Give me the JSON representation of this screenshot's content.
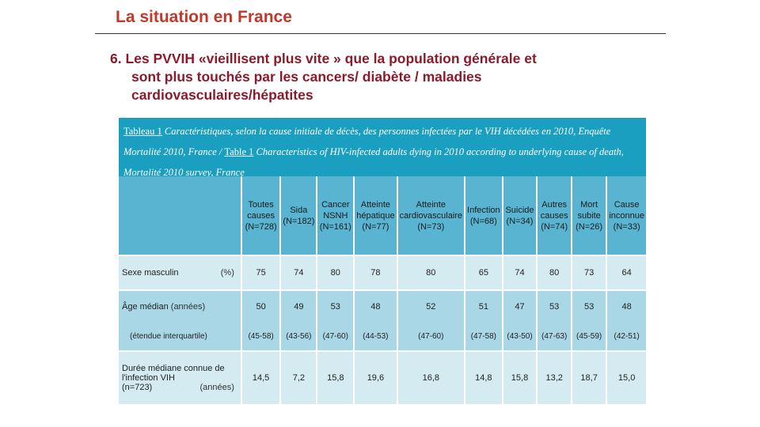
{
  "slide": {
    "title": "La situation en France",
    "bullet": {
      "line1": "6. Les PVVIH «vieillisent plus vite » que la population générale et",
      "line2": "sont plus touchés par les cancers/ diabète / maladies",
      "line3": "cardiovasculaires/hépatites"
    }
  },
  "table": {
    "caption": {
      "tag1": "Tableau 1",
      "text1": "Caractéristiques, selon la cause initiale de décès, des personnes infectées par le VIH décédées en 2010, Enquête Mortalité 2010, France /",
      "tag2": "Table 1",
      "text2": "Characteristics of HIV-infected adults dying in 2010 according to underlying cause of death, Mortalité 2010 survey, France"
    },
    "columns": [
      {
        "name": "Toutes causes",
        "n": "(N=728)"
      },
      {
        "name": "Sida",
        "n": "(N=182)"
      },
      {
        "name": "Cancer NSNH",
        "n": "(N=161)"
      },
      {
        "name": "Atteinte hépatique",
        "n": "(N=77)"
      },
      {
        "name": "Atteinte cardiovasculaire",
        "n": "(N=73)"
      },
      {
        "name": "Infection",
        "n": "(N=68)"
      },
      {
        "name": "Suicide",
        "n": "(N=34)"
      },
      {
        "name": "Autres causes",
        "n": "(N=74)"
      },
      {
        "name": "Mort subite",
        "n": "(N=26)"
      },
      {
        "name": "Cause inconnue",
        "n": "(N=33)"
      }
    ],
    "rows": {
      "sexe": {
        "label": "Sexe masculin",
        "unit": "(%)",
        "values": [
          "75",
          "74",
          "80",
          "78",
          "80",
          "65",
          "74",
          "80",
          "73",
          "64"
        ]
      },
      "age": {
        "label": "Âge médian",
        "unit": "(années)",
        "values": [
          "50",
          "49",
          "53",
          "48",
          "52",
          "51",
          "47",
          "53",
          "53",
          "48"
        ]
      },
      "iqr": {
        "label": "(étendue interquartile)",
        "values": [
          "(45-58)",
          "(43-56)",
          "(47-60)",
          "(44-53)",
          "(47-60)",
          "(47-58)",
          "(43-50)",
          "(47-63)",
          "(45-59)",
          "(42-51)"
        ]
      },
      "duree": {
        "label": "Durée médiane connue de l'infection VIH",
        "label2": "(n=723)",
        "unit": "(années)",
        "values": [
          "14,5",
          "7,2",
          "15,8",
          "19,6",
          "16,8",
          "14,8",
          "15,8",
          "13,2",
          "18,7",
          "15,0"
        ]
      }
    }
  }
}
